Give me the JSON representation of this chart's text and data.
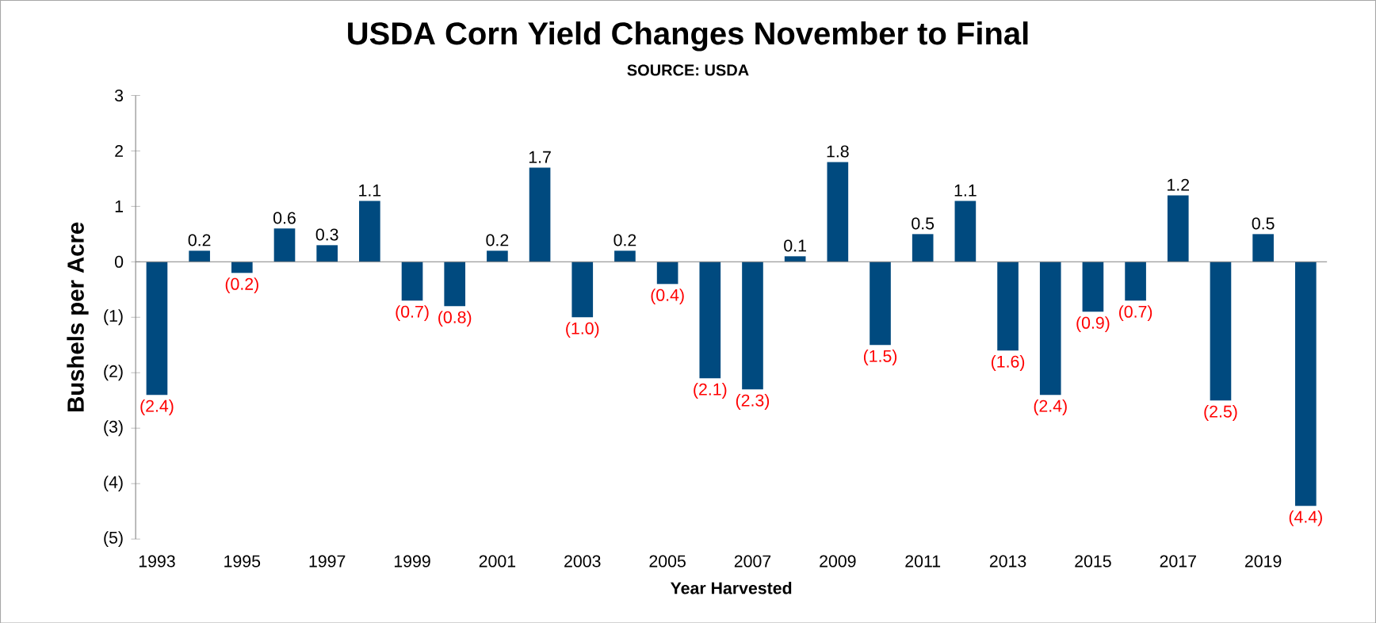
{
  "chart_data": {
    "type": "bar",
    "title": "USDA Corn Yield Changes November to Final",
    "subtitle": "SOURCE: USDA",
    "xlabel": "Year Harvested",
    "ylabel": "Bushels per Acre",
    "categories": [
      "1993",
      null,
      "1995",
      null,
      "1997",
      null,
      "1999",
      null,
      "2001",
      null,
      "2003",
      null,
      "2005",
      null,
      "2007",
      null,
      "2009",
      null,
      "2011",
      null,
      "2013",
      null,
      "2015",
      null,
      "2017",
      null,
      "2019",
      null
    ],
    "values": [
      -2.4,
      0.2,
      -0.2,
      0.6,
      0.3,
      1.1,
      -0.7,
      -0.8,
      0.2,
      1.7,
      -1.0,
      0.2,
      -0.4,
      -2.1,
      -2.3,
      0.1,
      1.8,
      -1.5,
      0.5,
      1.1,
      -1.6,
      -2.4,
      -0.9,
      -0.7,
      1.2,
      -2.5,
      0.5,
      -4.4
    ],
    "value_labels": [
      "(2.4)",
      "0.2",
      "(0.2)",
      "0.6",
      "0.3",
      "1.1",
      "(0.7)",
      "(0.8)",
      "0.2",
      "1.7",
      "(1.0)",
      "0.2",
      "(0.4)",
      "(2.1)",
      "(2.3)",
      "0.1",
      "1.8",
      "(1.5)",
      "0.5",
      "1.1",
      "(1.6)",
      "(2.4)",
      "(0.9)",
      "(0.7)",
      "1.2",
      "(2.5)",
      "0.5",
      "(4.4)"
    ],
    "color": "#004a7f",
    "ylim": [
      -5,
      3
    ],
    "yticks": [
      {
        "value": -5,
        "label": "(5)"
      },
      {
        "value": -4,
        "label": "(4)"
      },
      {
        "value": -3,
        "label": "(3)"
      },
      {
        "value": -2,
        "label": "(2)"
      },
      {
        "value": -1,
        "label": "(1)"
      },
      0,
      1,
      2,
      3
    ]
  }
}
